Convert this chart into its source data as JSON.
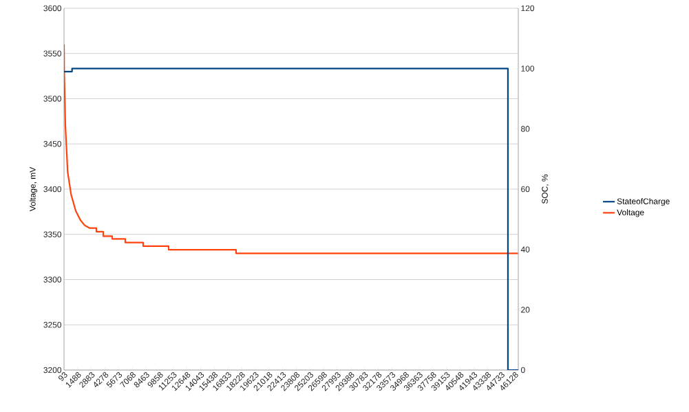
{
  "chart_data": {
    "type": "line",
    "ylabel": "Voltage, mV",
    "y2label": "SOC, %",
    "xlim": [
      93,
      46480
    ],
    "xticks": [
      93,
      1488,
      2883,
      4278,
      5673,
      7068,
      8463,
      9858,
      11253,
      12648,
      14043,
      15438,
      16833,
      18228,
      19623,
      21018,
      22413,
      23808,
      25203,
      26598,
      27993,
      29388,
      30783,
      32178,
      33573,
      34968,
      36363,
      37758,
      39153,
      40548,
      41943,
      43338,
      44733,
      46128
    ],
    "ylim": [
      3200,
      3600
    ],
    "yticks": [
      3200,
      3250,
      3300,
      3350,
      3400,
      3450,
      3500,
      3550,
      3600
    ],
    "y2lim": [
      0,
      120
    ],
    "y2ticks": [
      0,
      20,
      40,
      60,
      80,
      100,
      120
    ],
    "grid": "y",
    "legend": "right",
    "series": [
      {
        "name": "StateofCharge",
        "color": "#004586",
        "axis": "y2",
        "x": [
          93,
          913,
          913,
          45420,
          45420,
          46480
        ],
        "values": [
          99,
          99,
          100,
          100,
          0,
          0
        ]
      },
      {
        "name": "Voltage",
        "color": "#ff420e",
        "x": [
          93,
          114,
          234,
          465,
          817,
          1288,
          1758,
          2201,
          2693,
          3396,
          3396,
          4099,
          4099,
          5012,
          5012,
          6347,
          6347,
          8174,
          8174,
          10775,
          10775,
          17661,
          17661,
          46480
        ],
        "values": [
          3560,
          3530,
          3470,
          3419,
          3394,
          3376,
          3366,
          3360,
          3357,
          3357,
          3353,
          3353,
          3348,
          3348,
          3345,
          3345,
          3341,
          3341,
          3337,
          3337,
          3333,
          3333,
          3329,
          3329
        ]
      }
    ]
  }
}
